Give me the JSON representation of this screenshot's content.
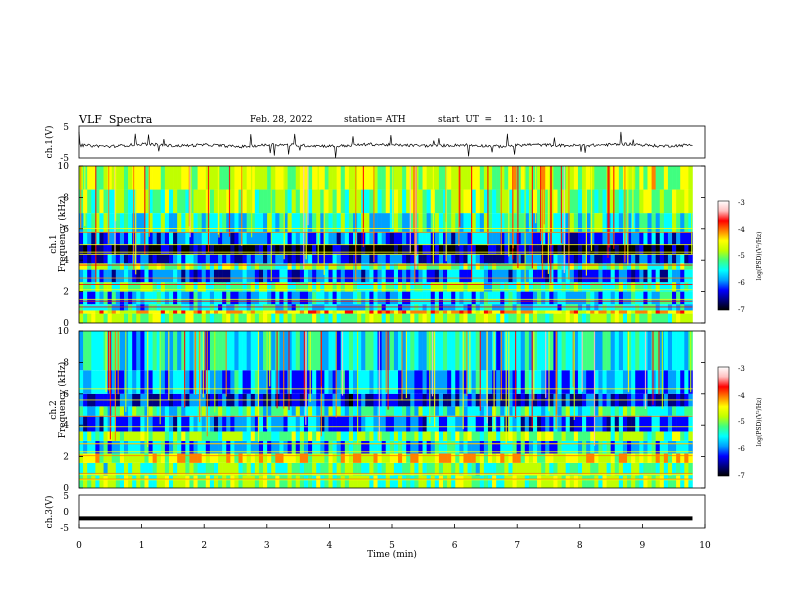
{
  "header": {
    "title": "VLF  Spectra",
    "date": "Feb. 28, 2022",
    "station": "station= ATH",
    "start": "start  UT  =    11: 10: 1"
  },
  "colors": {
    "spectrogram_scale": [
      "#000000",
      "#000080",
      "#0000ff",
      "#00a0ff",
      "#00ffff",
      "#40ff80",
      "#c0ff00",
      "#ffff00",
      "#ff8000",
      "#ff0000",
      "#ffc0c0",
      "#ffffff"
    ],
    "trace": "#000000"
  },
  "chart_data": [
    {
      "type": "line",
      "panel": "ch1-waveform",
      "ylabel": "ch.1(V)",
      "yticks": [
        "5",
        "-5"
      ],
      "ylim": [
        -5,
        5
      ],
      "xlim": [
        0,
        10
      ],
      "x_end": 9.8,
      "description_level": -1.0,
      "series": [
        {
          "values": [
            -1.0,
            -1.4,
            -0.6,
            -1.2,
            -0.9,
            -1.5,
            -0.8,
            -1.1,
            -1.3,
            -0.7,
            -1.0,
            -1.2,
            -0.9,
            -1.4,
            -0.8,
            -1.1,
            -1.0,
            -0.6,
            -1.3,
            -0.9
          ]
        }
      ]
    },
    {
      "type": "heatmap",
      "panel": "ch1-spectrogram",
      "ylabel": "Frequency  (kHz)",
      "channel_label": "ch.1",
      "yticks": [
        "0",
        "2",
        "4",
        "6",
        "8",
        "10"
      ],
      "ylim": [
        0,
        10
      ],
      "xlim": [
        0,
        10
      ],
      "x_end": 9.8,
      "zlim": [
        -7,
        -3
      ],
      "colorbar_label": "log(PSD)(V²/Hz)",
      "colorbar_ticks": [
        "-3",
        "-4",
        "-5",
        "-6",
        "-7"
      ],
      "frequency_bands_kHz": [
        {
          "from": 0.0,
          "to": 0.6,
          "level": -5.0
        },
        {
          "from": 0.6,
          "to": 0.8,
          "level": -4.3
        },
        {
          "from": 0.8,
          "to": 1.2,
          "level": -5.6
        },
        {
          "from": 1.2,
          "to": 2.0,
          "level": -5.8
        },
        {
          "from": 2.0,
          "to": 2.6,
          "level": -5.2
        },
        {
          "from": 2.6,
          "to": 3.4,
          "level": -6.0
        },
        {
          "from": 3.4,
          "to": 3.8,
          "level": -5.1
        },
        {
          "from": 3.8,
          "to": 4.4,
          "level": -6.2
        },
        {
          "from": 4.4,
          "to": 5.0,
          "level": -6.8
        },
        {
          "from": 5.0,
          "to": 5.8,
          "level": -6.0
        },
        {
          "from": 5.8,
          "to": 7.0,
          "level": -5.4
        },
        {
          "from": 7.0,
          "to": 8.5,
          "level": -5.0
        },
        {
          "from": 8.5,
          "to": 10.0,
          "level": -4.8
        }
      ]
    },
    {
      "type": "heatmap",
      "panel": "ch2-spectrogram",
      "ylabel": "Frequency  (kHz)",
      "channel_label": "ch.2",
      "yticks": [
        "0",
        "2",
        "4",
        "6",
        "8",
        "10"
      ],
      "ylim": [
        0,
        10
      ],
      "xlim": [
        0,
        10
      ],
      "x_end": 9.8,
      "zlim": [
        -7,
        -3
      ],
      "colorbar_label": "log(PSD)(V²/Hz)",
      "colorbar_ticks": [
        "-3",
        "-4",
        "-5",
        "-6",
        "-7"
      ],
      "frequency_bands_kHz": [
        {
          "from": 0.0,
          "to": 0.8,
          "level": -5.0
        },
        {
          "from": 0.8,
          "to": 1.6,
          "level": -5.2
        },
        {
          "from": 1.6,
          "to": 2.2,
          "level": -4.6
        },
        {
          "from": 2.2,
          "to": 3.0,
          "level": -5.8
        },
        {
          "from": 3.0,
          "to": 3.6,
          "level": -5.0
        },
        {
          "from": 3.6,
          "to": 4.6,
          "level": -6.0
        },
        {
          "from": 4.6,
          "to": 5.2,
          "level": -5.4
        },
        {
          "from": 5.2,
          "to": 6.0,
          "level": -6.3
        },
        {
          "from": 6.0,
          "to": 7.5,
          "level": -5.9
        },
        {
          "from": 7.5,
          "to": 10.0,
          "level": -5.6
        }
      ]
    },
    {
      "type": "line",
      "panel": "ch3-waveform",
      "ylabel": "ch.3(V)",
      "yticks": [
        "5",
        "0",
        "-5"
      ],
      "ylim": [
        -5,
        5
      ],
      "xlim": [
        0,
        10
      ],
      "x_end": 9.8,
      "xlabel": "Time  (min)",
      "xticks": [
        "0",
        "1",
        "2",
        "3",
        "4",
        "5",
        "6",
        "7",
        "8",
        "9",
        "10"
      ],
      "series": [
        {
          "values": [
            -2.1,
            -2.1
          ]
        }
      ]
    }
  ]
}
